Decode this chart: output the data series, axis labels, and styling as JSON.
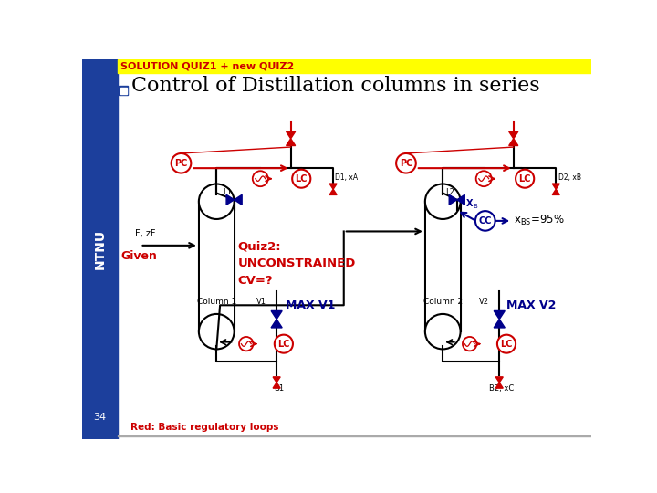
{
  "title": "Control of Distillation columns in series",
  "header_text": "SOLUTION QUIZ1 + new QUIZ2",
  "header_bg": "#FFFF00",
  "header_fg": "#FF0000",
  "sidebar_bg": "#1C3F9C",
  "main_bg": "#FFFFFF",
  "title_color": "#000000",
  "page_num": "34",
  "footer_text": "Red: Basic regulatory loops",
  "footer_color": "#CC0000",
  "col1_label": "Column 1",
  "col2_label": "Column 2",
  "feed_label": "F, zF",
  "given_label": "Given",
  "quiz2_text": "Quiz2:\nUNCONSTRAINED\nCV=?",
  "quiz2_color": "#CC0000",
  "max_v1_text": "MAX V1",
  "max_v2_text": "MAX V2",
  "max_color": "#00008B",
  "v1_label": "V1",
  "v2_label": "V2",
  "l1_label": "L1",
  "l2_label": "L2",
  "d1_label": "D1, xA",
  "d2_label": "D2, xB",
  "b1_label": "B1",
  "b2_label": "B2, xC",
  "xbs_text": "x",
  "xb_label": "X",
  "red_color": "#CC0000",
  "blue_color": "#00008B"
}
